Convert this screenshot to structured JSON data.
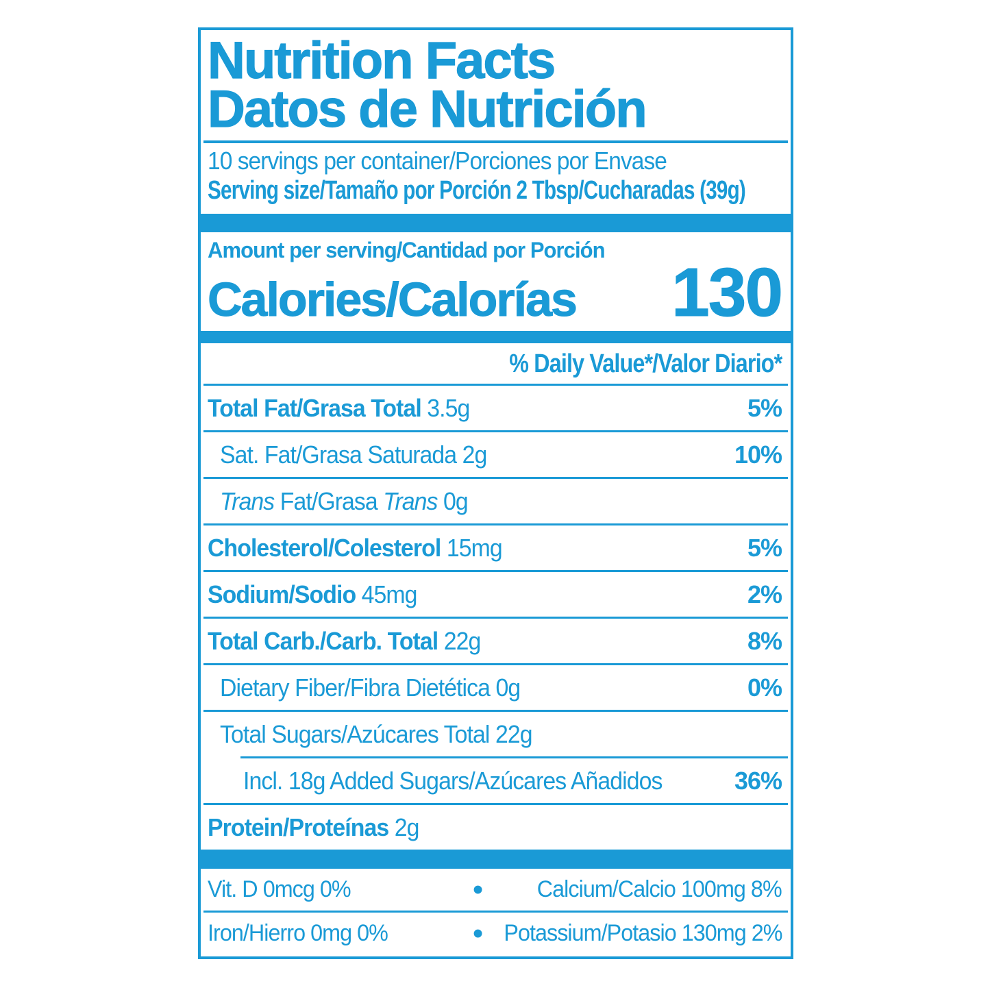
{
  "colors": {
    "blue": "#1a9ad6"
  },
  "header": {
    "title_en": "Nutrition Facts",
    "title_es": "Datos de Nutrición"
  },
  "serving": {
    "per_container": "10 servings per container/Porciones por Envase",
    "size": "Serving size/Tamaño por Porción 2 Tbsp/Cucharadas (39g)"
  },
  "calories": {
    "amount_per_serving": "Amount per serving/Cantidad por Porción",
    "label": "Calories/Calorías",
    "value": "130"
  },
  "daily_value_header": "% Daily Value*/Valor Diario*",
  "nutrients": [
    {
      "name": "Total Fat/Grasa Total",
      "amount": "3.5g",
      "dv": "5%"
    },
    {
      "name": "Sat. Fat/Grasa Saturada",
      "amount": "2g",
      "dv": "10%"
    },
    {
      "name_italic_start": "Trans",
      "name_middle": "Fat/Grasa",
      "name_italic_end": "Trans",
      "amount": "0g",
      "dv": ""
    },
    {
      "name": "Cholesterol/Colesterol",
      "amount": "15mg",
      "dv": "5%"
    },
    {
      "name": "Sodium/Sodio",
      "amount": "45mg",
      "dv": "2%"
    },
    {
      "name": "Total Carb./Carb. Total",
      "amount": "22g",
      "dv": "8%"
    },
    {
      "name": "Dietary Fiber/Fibra Dietética",
      "amount": "0g",
      "dv": "0%"
    },
    {
      "name": "Total Sugars/Azúcares Total",
      "amount": "22g",
      "dv": ""
    },
    {
      "name": "Incl. 18g Added Sugars/Azúcares Añadidos",
      "amount": "",
      "dv": "36%"
    },
    {
      "name": "Protein/Proteínas",
      "amount": "2g",
      "dv": ""
    }
  ],
  "micros": {
    "bullet": "•",
    "rows": [
      {
        "left": "Vit. D 0mcg 0%",
        "right": "Calcium/Calcio 100mg 8%"
      },
      {
        "left": "Iron/Hierro 0mg 0%",
        "right": "Potassium/Potasio 130mg 2%"
      }
    ]
  }
}
